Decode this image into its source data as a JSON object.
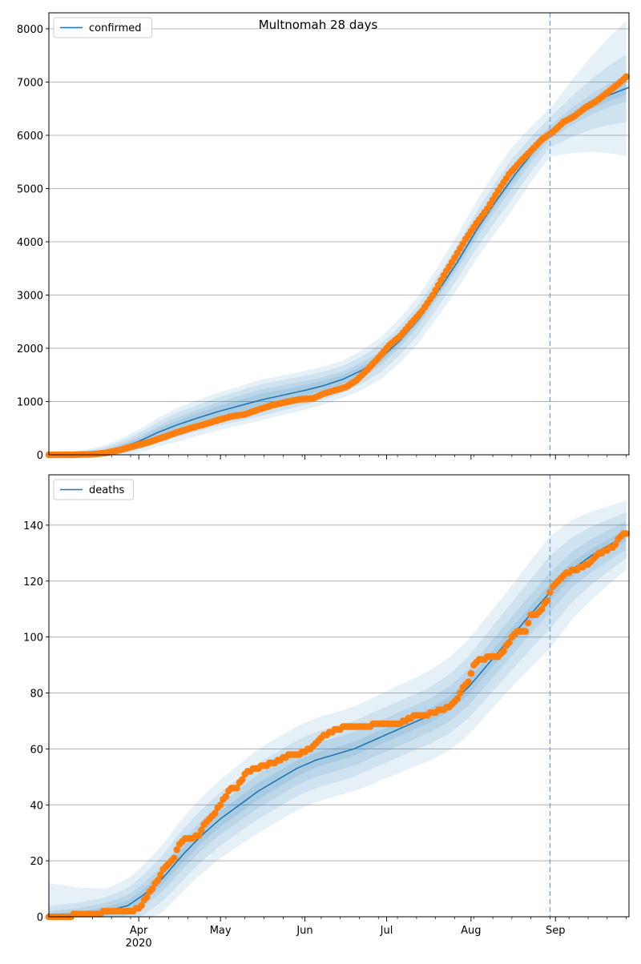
{
  "figure": {
    "title": "Multnomah 28 days"
  },
  "chart_data": [
    {
      "type": "line",
      "title": "Multnomah 28 days",
      "legend": {
        "placement": "top-left",
        "entries": [
          "confirmed"
        ]
      },
      "grid": "horizontal",
      "x_range": [
        "2020-02-28",
        "2020-09-28"
      ],
      "ylim": [
        0,
        8300
      ],
      "yticks": [
        0,
        1000,
        2000,
        3000,
        4000,
        5000,
        6000,
        7000,
        8000
      ],
      "forecast_start": "2020-08-30",
      "series": [
        {
          "name": "confirmed",
          "kind": "model-line",
          "color": "#1f77b4",
          "points": [
            [
              "2020-02-28",
              0
            ],
            [
              "2020-03-10",
              3
            ],
            [
              "2020-03-18",
              40
            ],
            [
              "2020-03-24",
              110
            ],
            [
              "2020-04-01",
              250
            ],
            [
              "2020-04-08",
              420
            ],
            [
              "2020-04-15",
              560
            ],
            [
              "2020-04-22",
              680
            ],
            [
              "2020-04-30",
              810
            ],
            [
              "2020-05-08",
              920
            ],
            [
              "2020-05-16",
              1030
            ],
            [
              "2020-05-24",
              1120
            ],
            [
              "2020-06-01",
              1210
            ],
            [
              "2020-06-08",
              1300
            ],
            [
              "2020-06-15",
              1420
            ],
            [
              "2020-06-22",
              1590
            ],
            [
              "2020-06-29",
              1820
            ],
            [
              "2020-07-06",
              2150
            ],
            [
              "2020-07-13",
              2560
            ],
            [
              "2020-07-20",
              3080
            ],
            [
              "2020-07-27",
              3620
            ],
            [
              "2020-08-03",
              4220
            ],
            [
              "2020-08-10",
              4750
            ],
            [
              "2020-08-17",
              5250
            ],
            [
              "2020-08-24",
              5700
            ],
            [
              "2020-08-30",
              6050
            ],
            [
              "2020-09-07",
              6350
            ],
            [
              "2020-09-14",
              6580
            ],
            [
              "2020-09-21",
              6760
            ],
            [
              "2020-09-28",
              6900
            ]
          ]
        },
        {
          "name": "observed",
          "kind": "observed-dots",
          "color": "#ff7f0e",
          "points": [
            [
              "2020-02-28",
              0
            ],
            [
              "2020-03-08",
              2
            ],
            [
              "2020-03-15",
              10
            ],
            [
              "2020-03-20",
              35
            ],
            [
              "2020-03-25",
              90
            ],
            [
              "2020-03-30",
              160
            ],
            [
              "2020-04-05",
              240
            ],
            [
              "2020-04-10",
              330
            ],
            [
              "2020-04-15",
              420
            ],
            [
              "2020-04-20",
              500
            ],
            [
              "2020-04-25",
              570
            ],
            [
              "2020-04-30",
              650
            ],
            [
              "2020-05-05",
              720
            ],
            [
              "2020-05-10",
              760
            ],
            [
              "2020-05-15",
              850
            ],
            [
              "2020-05-20",
              930
            ],
            [
              "2020-05-25",
              990
            ],
            [
              "2020-05-30",
              1040
            ],
            [
              "2020-06-04",
              1060
            ],
            [
              "2020-06-08",
              1150
            ],
            [
              "2020-06-12",
              1210
            ],
            [
              "2020-06-16",
              1270
            ],
            [
              "2020-06-20",
              1400
            ],
            [
              "2020-06-24",
              1600
            ],
            [
              "2020-06-28",
              1820
            ],
            [
              "2020-07-02",
              2060
            ],
            [
              "2020-07-06",
              2230
            ],
            [
              "2020-07-10",
              2470
            ],
            [
              "2020-07-14",
              2700
            ],
            [
              "2020-07-18",
              3000
            ],
            [
              "2020-07-22",
              3370
            ],
            [
              "2020-07-26",
              3700
            ],
            [
              "2020-07-30",
              4050
            ],
            [
              "2020-08-03",
              4350
            ],
            [
              "2020-08-07",
              4620
            ],
            [
              "2020-08-11",
              4960
            ],
            [
              "2020-08-15",
              5270
            ],
            [
              "2020-08-19",
              5500
            ],
            [
              "2020-08-23",
              5710
            ],
            [
              "2020-08-27",
              5920
            ],
            [
              "2020-08-31",
              6060
            ],
            [
              "2020-09-04",
              6250
            ],
            [
              "2020-09-08",
              6360
            ],
            [
              "2020-09-12",
              6520
            ],
            [
              "2020-09-16",
              6640
            ],
            [
              "2020-09-20",
              6800
            ],
            [
              "2020-09-24",
              6960
            ],
            [
              "2020-09-27",
              7100
            ]
          ]
        }
      ],
      "bands": {
        "color": "#1f77b4",
        "anchors": [
          "2020-02-28",
          "2020-03-20",
          "2020-04-15",
          "2020-05-15",
          "2020-06-15",
          "2020-07-15",
          "2020-08-15",
          "2020-08-30",
          "2020-09-28"
        ],
        "half_widths": [
          [
            0,
            30,
            80,
            120,
            80,
            60,
            80,
            60,
            120
          ],
          [
            0,
            50,
            140,
            200,
            150,
            120,
            180,
            130,
            250
          ],
          [
            0,
            90,
            230,
            300,
            250,
            280,
            380,
            280,
            650
          ],
          [
            0,
            130,
            320,
            380,
            350,
            450,
            600,
            450,
            1300
          ]
        ]
      }
    },
    {
      "type": "line",
      "title": "",
      "legend": {
        "placement": "top-left",
        "entries": [
          "deaths"
        ]
      },
      "grid": "horizontal",
      "x_range": [
        "2020-02-28",
        "2020-09-28"
      ],
      "ylim": [
        0,
        158
      ],
      "yticks": [
        0,
        20,
        40,
        60,
        80,
        100,
        120,
        140
      ],
      "forecast_start": "2020-08-30",
      "xticks": [
        {
          "date": "2020-04-01",
          "label": "Apr",
          "year": "2020"
        },
        {
          "date": "2020-05-01",
          "label": "May",
          "year": ""
        },
        {
          "date": "2020-06-01",
          "label": "Jun",
          "year": ""
        },
        {
          "date": "2020-07-01",
          "label": "Jul",
          "year": ""
        },
        {
          "date": "2020-08-01",
          "label": "Aug",
          "year": ""
        },
        {
          "date": "2020-09-01",
          "label": "Sep",
          "year": ""
        }
      ],
      "series": [
        {
          "name": "deaths",
          "kind": "model-line",
          "color": "#1f77b4",
          "points": [
            [
              "2020-02-28",
              0
            ],
            [
              "2020-03-10",
              0.5
            ],
            [
              "2020-03-20",
              2
            ],
            [
              "2020-03-28",
              4
            ],
            [
              "2020-04-03",
              8
            ],
            [
              "2020-04-10",
              14
            ],
            [
              "2020-04-17",
              22
            ],
            [
              "2020-04-24",
              29
            ],
            [
              "2020-05-01",
              35
            ],
            [
              "2020-05-08",
              40
            ],
            [
              "2020-05-15",
              45
            ],
            [
              "2020-05-22",
              49
            ],
            [
              "2020-05-29",
              53
            ],
            [
              "2020-06-05",
              56
            ],
            [
              "2020-06-12",
              58
            ],
            [
              "2020-06-19",
              60
            ],
            [
              "2020-06-26",
              63
            ],
            [
              "2020-07-03",
              66
            ],
            [
              "2020-07-10",
              69
            ],
            [
              "2020-07-17",
              72
            ],
            [
              "2020-07-24",
              76
            ],
            [
              "2020-07-31",
              82
            ],
            [
              "2020-08-07",
              90
            ],
            [
              "2020-08-14",
              98
            ],
            [
              "2020-08-21",
              106
            ],
            [
              "2020-08-30",
              116
            ],
            [
              "2020-09-07",
              124
            ],
            [
              "2020-09-14",
              129
            ],
            [
              "2020-09-21",
              133
            ],
            [
              "2020-09-28",
              137
            ]
          ]
        },
        {
          "name": "observed",
          "kind": "observed-dots",
          "color": "#ff7f0e",
          "points": [
            [
              "2020-02-28",
              0
            ],
            [
              "2020-03-05",
              0
            ],
            [
              "2020-03-11",
              1
            ],
            [
              "2020-03-17",
              1
            ],
            [
              "2020-03-21",
              2
            ],
            [
              "2020-03-25",
              2
            ],
            [
              "2020-03-29",
              2
            ],
            [
              "2020-04-01",
              3
            ],
            [
              "2020-04-04",
              7
            ],
            [
              "2020-04-08",
              13
            ],
            [
              "2020-04-10",
              17
            ],
            [
              "2020-04-12",
              19
            ],
            [
              "2020-04-14",
              21
            ],
            [
              "2020-04-16",
              26
            ],
            [
              "2020-04-18",
              28
            ],
            [
              "2020-04-21",
              28
            ],
            [
              "2020-04-23",
              29
            ],
            [
              "2020-04-25",
              33
            ],
            [
              "2020-04-27",
              35
            ],
            [
              "2020-04-29",
              37
            ],
            [
              "2020-05-01",
              40
            ],
            [
              "2020-05-03",
              43
            ],
            [
              "2020-05-05",
              46
            ],
            [
              "2020-05-07",
              46
            ],
            [
              "2020-05-09",
              49
            ],
            [
              "2020-05-11",
              52
            ],
            [
              "2020-05-14",
              53
            ],
            [
              "2020-05-17",
              54
            ],
            [
              "2020-05-20",
              55
            ],
            [
              "2020-05-23",
              56
            ],
            [
              "2020-05-26",
              58
            ],
            [
              "2020-05-29",
              58
            ],
            [
              "2020-06-01",
              59
            ],
            [
              "2020-06-04",
              61
            ],
            [
              "2020-06-07",
              64
            ],
            [
              "2020-06-10",
              66
            ],
            [
              "2020-06-13",
              67
            ],
            [
              "2020-06-16",
              68
            ],
            [
              "2020-06-20",
              68
            ],
            [
              "2020-06-24",
              68
            ],
            [
              "2020-06-28",
              69
            ],
            [
              "2020-07-02",
              69
            ],
            [
              "2020-07-06",
              69
            ],
            [
              "2020-07-09",
              71
            ],
            [
              "2020-07-12",
              72
            ],
            [
              "2020-07-15",
              72
            ],
            [
              "2020-07-18",
              73
            ],
            [
              "2020-07-21",
              74
            ],
            [
              "2020-07-24",
              75
            ],
            [
              "2020-07-27",
              78
            ],
            [
              "2020-07-29",
              82
            ],
            [
              "2020-07-31",
              84
            ],
            [
              "2020-08-02",
              90
            ],
            [
              "2020-08-04",
              92
            ],
            [
              "2020-08-06",
              92
            ],
            [
              "2020-08-08",
              93
            ],
            [
              "2020-08-11",
              93
            ],
            [
              "2020-08-13",
              95
            ],
            [
              "2020-08-15",
              98
            ],
            [
              "2020-08-17",
              101
            ],
            [
              "2020-08-19",
              102
            ],
            [
              "2020-08-21",
              102
            ],
            [
              "2020-08-23",
              108
            ],
            [
              "2020-08-25",
              108
            ],
            [
              "2020-08-27",
              110
            ],
            [
              "2020-08-29",
              113
            ],
            [
              "2020-08-31",
              118
            ],
            [
              "2020-09-02",
              120
            ],
            [
              "2020-09-05",
              123
            ],
            [
              "2020-09-08",
              124
            ],
            [
              "2020-09-11",
              125
            ],
            [
              "2020-09-14",
              127
            ],
            [
              "2020-09-17",
              130
            ],
            [
              "2020-09-20",
              131
            ],
            [
              "2020-09-23",
              133
            ],
            [
              "2020-09-25",
              136
            ],
            [
              "2020-09-27",
              137
            ]
          ]
        }
      ],
      "bands": {
        "color": "#1f77b4",
        "anchors": [
          "2020-02-28",
          "2020-03-20",
          "2020-04-15",
          "2020-05-15",
          "2020-06-15",
          "2020-07-15",
          "2020-08-15",
          "2020-08-30",
          "2020-09-28"
        ],
        "half_widths": [
          [
            1,
            1.5,
            2.5,
            3,
            2.5,
            2.5,
            3,
            3,
            2
          ],
          [
            2,
            3,
            5,
            6,
            6,
            6,
            7,
            7,
            5
          ],
          [
            4,
            5,
            9,
            10,
            10,
            10,
            12,
            13,
            8
          ],
          [
            12,
            8,
            13,
            15,
            15,
            16,
            18,
            20,
            12
          ]
        ]
      }
    }
  ]
}
